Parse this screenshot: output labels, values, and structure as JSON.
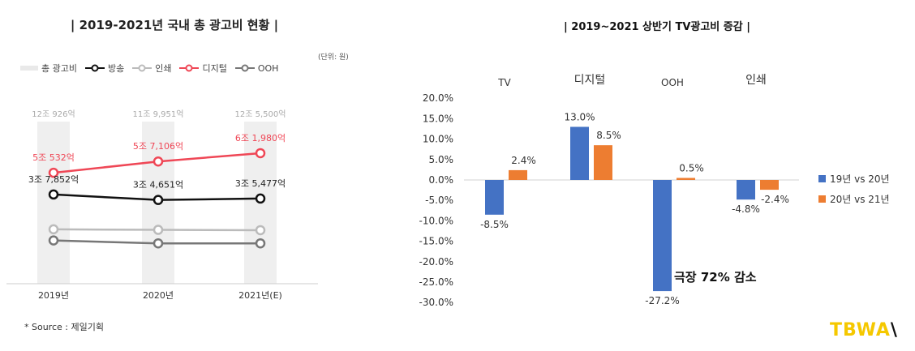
{
  "left_chart": {
    "title": "| 2019-2021년 국내 총 광고비 현황 |",
    "unit": "(단위: 원)",
    "legend": [
      {
        "label": "총 광고비",
        "color": "#e9e9e9",
        "kind": "bar"
      },
      {
        "label": "방송",
        "color": "#111111",
        "kind": "line"
      },
      {
        "label": "인쇄",
        "color": "#bbbbbb",
        "kind": "line"
      },
      {
        "label": "디지털",
        "color": "#ef4756",
        "kind": "line"
      },
      {
        "label": "OOH",
        "color": "#777777",
        "kind": "line"
      }
    ],
    "source": "* Source : 제일기획"
  },
  "right_chart": {
    "title": "| 2019~2021 상반기 TV광고비 증감 |",
    "legend": [
      {
        "label": "19년 vs 20년",
        "color": "#4472c4"
      },
      {
        "label": "20년 vs 21년",
        "color": "#ed7d31"
      }
    ],
    "annotation": "극장 72% 감소"
  },
  "logo": {
    "main": "TBWA",
    "mark": "\\"
  },
  "chart_data": [
    {
      "type": "line",
      "title": "| 2019-2021년 국내 총 광고비 현황 |",
      "categories": [
        "2019년",
        "2020년",
        "2021년(E)"
      ],
      "total_labels": [
        "12조 926억",
        "11조 9,951억",
        "12조 5,500억"
      ],
      "series": [
        {
          "name": "디지털",
          "color": "#ef4756",
          "values": [
            5.0532,
            5.7106,
            6.198
          ],
          "labels": [
            "5조 532억",
            "5조 7,106억",
            "6조 1,980억"
          ]
        },
        {
          "name": "방송",
          "color": "#111111",
          "values": [
            3.7852,
            3.4651,
            3.5477
          ],
          "labels": [
            "3조 7,852억",
            "3조 4,651억",
            "3조 5,477억"
          ]
        },
        {
          "name": "인쇄",
          "color": "#bbbbbb",
          "values": [
            1.75,
            1.72,
            1.7
          ],
          "labels": []
        },
        {
          "name": "OOH",
          "color": "#777777",
          "values": [
            1.1,
            0.93,
            0.93
          ],
          "labels": []
        }
      ]
    },
    {
      "type": "bar",
      "title": "| 2019~2021 상반기 TV광고비 증감 |",
      "categories": [
        "TV",
        "디지털",
        "OOH",
        "인쇄"
      ],
      "ylim": [
        -30,
        20
      ],
      "yticks": [
        "20.0%",
        "15.0%",
        "10.0%",
        "5.0%",
        "0.0%",
        "-5.0%",
        "-10.0%",
        "-15.0%",
        "-20.0%",
        "-25.0%",
        "-30.0%"
      ],
      "series": [
        {
          "name": "19년 vs 20년",
          "color": "#4472c4",
          "values": [
            -8.5,
            13.0,
            -27.2,
            -4.8
          ],
          "labels": [
            "-8.5%",
            "13.0%",
            "-27.2%",
            "-4.8%"
          ]
        },
        {
          "name": "20년 vs 21년",
          "color": "#ed7d31",
          "values": [
            2.4,
            8.5,
            0.5,
            -2.4
          ],
          "labels": [
            "2.4%",
            "8.5%",
            "0.5%",
            "-2.4%"
          ]
        }
      ]
    }
  ]
}
